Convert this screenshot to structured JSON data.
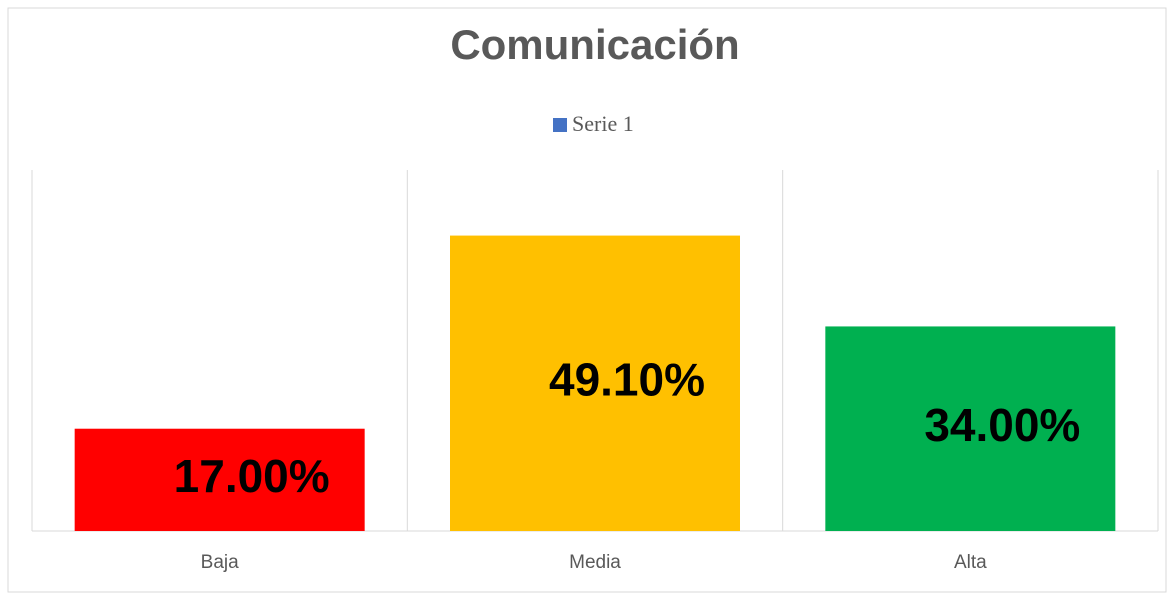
{
  "chart_data": {
    "type": "bar",
    "title": "Comunicación",
    "categories": [
      "Baja",
      "Media",
      "Alta"
    ],
    "series": [
      {
        "name": "Serie 1",
        "color": "#4472c4",
        "values": [
          17,
          49.1,
          34
        ],
        "value_labels": [
          "17.00%",
          "49.10%",
          "34.00%"
        ],
        "point_colors": [
          "#ff0000",
          "#ffc000",
          "#00b050"
        ]
      }
    ],
    "ylim": [
      0,
      60
    ],
    "legend": "top"
  }
}
